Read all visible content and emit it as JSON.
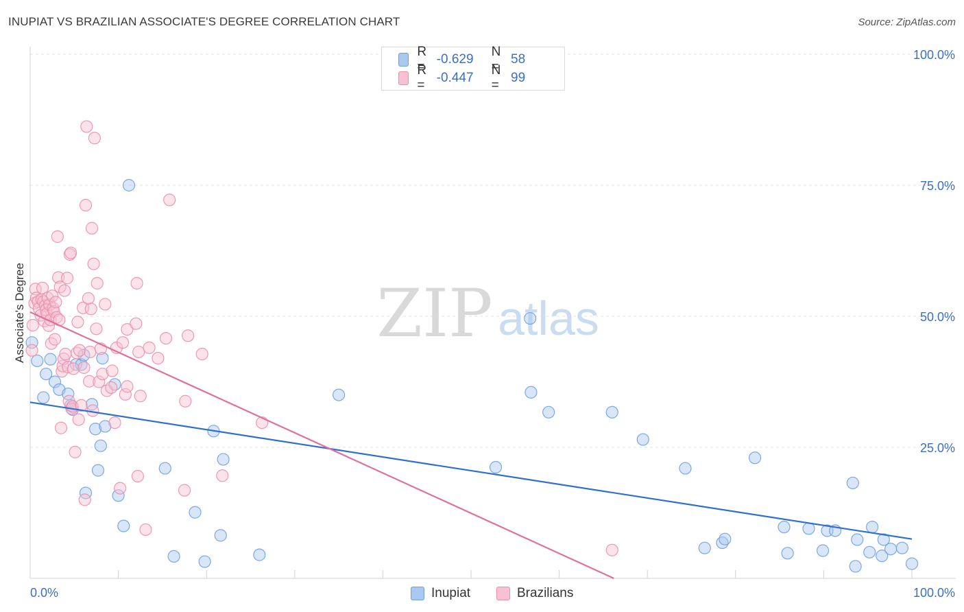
{
  "header": {
    "title": "INUPIAT VS BRAZILIAN ASSOCIATE'S DEGREE CORRELATION CHART",
    "source": "Source: ZipAtlas.com"
  },
  "watermark": {
    "zip": "ZIP",
    "atlas": "atlas"
  },
  "legend": {
    "rows": [
      {
        "r_label": "R = ",
        "r_value": "-0.629",
        "n_label": "N = ",
        "n_value": "58",
        "color": "#a8c8f0",
        "border": "#6fa0e0"
      },
      {
        "r_label": "R = ",
        "r_value": "-0.447",
        "n_label": "N = ",
        "n_value": "99",
        "color": "#f8c0d0",
        "border": "#e890ac"
      }
    ]
  },
  "bottom_legend": [
    {
      "label": "Inupiat",
      "color": "#a8c8f0",
      "border": "#6fa0e0"
    },
    {
      "label": "Brazilians",
      "color": "#f8c0d0",
      "border": "#e890ac"
    }
  ],
  "chart_data": {
    "type": "scatter",
    "title": "INUPIAT VS BRAZILIAN ASSOCIATE'S DEGREE CORRELATION CHART",
    "xlabel": "",
    "ylabel": "Associate's Degree",
    "xlim": [
      0,
      100
    ],
    "ylim": [
      0,
      100
    ],
    "x_tick_labels": [
      "0.0%",
      "100.0%"
    ],
    "y_ticks": [
      25,
      50,
      75,
      100
    ],
    "y_tick_labels": [
      "25.0%",
      "50.0%",
      "75.0%",
      "100.0%"
    ],
    "grid": true,
    "series": [
      {
        "name": "Inupiat",
        "color": "#6fa0e0",
        "fill": "#a8c8f0",
        "trend": {
          "x": [
            0,
            100
          ],
          "y": [
            33.6,
            7.5
          ],
          "color": "#2f6fd0"
        },
        "points": [
          [
            0.2,
            45
          ],
          [
            0.8,
            41.5
          ],
          [
            1.5,
            34.5
          ],
          [
            1.8,
            39
          ],
          [
            2.3,
            41.8
          ],
          [
            2.8,
            37.5
          ],
          [
            3.3,
            36
          ],
          [
            4.3,
            35.2
          ],
          [
            4.6,
            33
          ],
          [
            4.8,
            32.2
          ],
          [
            5.2,
            40.8
          ],
          [
            5.8,
            40.8
          ],
          [
            6.1,
            42.6
          ],
          [
            6.3,
            16.3
          ],
          [
            7,
            33.2
          ],
          [
            7.4,
            28.5
          ],
          [
            7.7,
            20.6
          ],
          [
            8.0,
            25.3
          ],
          [
            8.2,
            42
          ],
          [
            8.5,
            29
          ],
          [
            9.6,
            37
          ],
          [
            10,
            15.8
          ],
          [
            10.6,
            10
          ],
          [
            11.2,
            75
          ],
          [
            15.3,
            21
          ],
          [
            16.3,
            4.2
          ],
          [
            18.7,
            12.6
          ],
          [
            19.8,
            3.2
          ],
          [
            20.8,
            28.1
          ],
          [
            21.6,
            8.2
          ],
          [
            21.9,
            22.7
          ],
          [
            26,
            4.5
          ],
          [
            35,
            35
          ],
          [
            52.8,
            21.2
          ],
          [
            56.7,
            49.6
          ],
          [
            56.8,
            35.5
          ],
          [
            58.8,
            31.7
          ],
          [
            66,
            31.7
          ],
          [
            69.5,
            26.5
          ],
          [
            74.3,
            21
          ],
          [
            76.5,
            5.8
          ],
          [
            78.5,
            6.8
          ],
          [
            78.8,
            7.5
          ],
          [
            82.2,
            23
          ],
          [
            85.5,
            9.8
          ],
          [
            85.9,
            4.8
          ],
          [
            88.3,
            9.5
          ],
          [
            89.9,
            5.3
          ],
          [
            90.4,
            9.1
          ],
          [
            91.3,
            9.1
          ],
          [
            93.3,
            18.2
          ],
          [
            93.6,
            2.3
          ],
          [
            93.8,
            7.4
          ],
          [
            95.2,
            5
          ],
          [
            95.5,
            9.8
          ],
          [
            96.6,
            4.3
          ],
          [
            96.8,
            7.4
          ],
          [
            97.6,
            5.6
          ],
          [
            98.9,
            5.8
          ],
          [
            100,
            2.8
          ]
        ]
      },
      {
        "name": "Brazilians",
        "color": "#e890ac",
        "fill": "#f8c0d0",
        "trend": {
          "x": [
            0,
            66.2
          ],
          "y": [
            50.8,
            0
          ],
          "color": "#e0709a"
        },
        "points": [
          [
            0.2,
            43.5
          ],
          [
            0.3,
            48.3
          ],
          [
            0.5,
            52.5
          ],
          [
            0.6,
            55.2
          ],
          [
            0.7,
            53.5
          ],
          [
            0.9,
            52.8
          ],
          [
            1.0,
            51.5
          ],
          [
            1.2,
            50.2
          ],
          [
            1.3,
            53.2
          ],
          [
            1.4,
            55.4
          ],
          [
            1.5,
            52.8
          ],
          [
            1.6,
            49.1
          ],
          [
            1.7,
            52.0
          ],
          [
            1.8,
            51.2
          ],
          [
            1.9,
            50.5
          ],
          [
            2.0,
            53.5
          ],
          [
            2.1,
            48.2
          ],
          [
            2.2,
            52.2
          ],
          [
            2.3,
            49.3
          ],
          [
            2.4,
            44.8
          ],
          [
            2.5,
            53.9
          ],
          [
            2.6,
            51.5
          ],
          [
            2.7,
            50.9
          ],
          [
            2.8,
            45.6
          ],
          [
            2.9,
            52.7
          ],
          [
            3.0,
            49.8
          ],
          [
            3.1,
            65.2
          ],
          [
            3.2,
            57.4
          ],
          [
            3.3,
            49.3
          ],
          [
            3.4,
            55.6
          ],
          [
            3.5,
            28.7
          ],
          [
            3.6,
            39.5
          ],
          [
            3.7,
            40.5
          ],
          [
            3.8,
            41.9
          ],
          [
            3.9,
            54.9
          ],
          [
            4.0,
            42.8
          ],
          [
            4.2,
            57.3
          ],
          [
            4.3,
            40.3
          ],
          [
            4.4,
            33.8
          ],
          [
            4.5,
            61.8
          ],
          [
            4.6,
            62.1
          ],
          [
            4.7,
            32.4
          ],
          [
            4.8,
            32.8
          ],
          [
            4.9,
            40.0
          ],
          [
            5.1,
            24.1
          ],
          [
            5.3,
            43.0
          ],
          [
            5.4,
            48.9
          ],
          [
            5.5,
            30.3
          ],
          [
            5.6,
            43.5
          ],
          [
            5.8,
            33.0
          ],
          [
            6.0,
            51.6
          ],
          [
            6.1,
            40.2
          ],
          [
            6.2,
            15.0
          ],
          [
            6.3,
            71.2
          ],
          [
            6.4,
            86.2
          ],
          [
            6.6,
            53.4
          ],
          [
            6.7,
            37.6
          ],
          [
            6.8,
            43.2
          ],
          [
            6.9,
            51.4
          ],
          [
            7.0,
            66.8
          ],
          [
            7.1,
            32.0
          ],
          [
            7.2,
            60.0
          ],
          [
            7.3,
            84.0
          ],
          [
            7.5,
            47.6
          ],
          [
            7.6,
            56.3
          ],
          [
            7.8,
            37.5
          ],
          [
            8.0,
            43.8
          ],
          [
            8.2,
            39.0
          ],
          [
            8.5,
            52.3
          ],
          [
            8.7,
            35.8
          ],
          [
            9.2,
            36.4
          ],
          [
            9.3,
            39.6
          ],
          [
            9.6,
            29.7
          ],
          [
            9.8,
            44.0
          ],
          [
            10.2,
            17.2
          ],
          [
            10.5,
            45.0
          ],
          [
            10.8,
            35.1
          ],
          [
            11.0,
            36.6
          ],
          [
            11.0,
            47.5
          ],
          [
            12.0,
            48.6
          ],
          [
            12.1,
            56.3
          ],
          [
            12.2,
            19.5
          ],
          [
            12.3,
            43.2
          ],
          [
            12.5,
            34.8
          ],
          [
            13.1,
            9.3
          ],
          [
            13.5,
            44.0
          ],
          [
            14.5,
            42.0
          ],
          [
            15.4,
            45.8
          ],
          [
            15.8,
            72.2
          ],
          [
            17.5,
            16.8
          ],
          [
            17.6,
            33.8
          ],
          [
            17.9,
            46.3
          ],
          [
            19.5,
            42.8
          ],
          [
            21.8,
            19.6
          ],
          [
            26.3,
            29.7
          ],
          [
            66.0,
            5.4
          ]
        ]
      }
    ]
  }
}
